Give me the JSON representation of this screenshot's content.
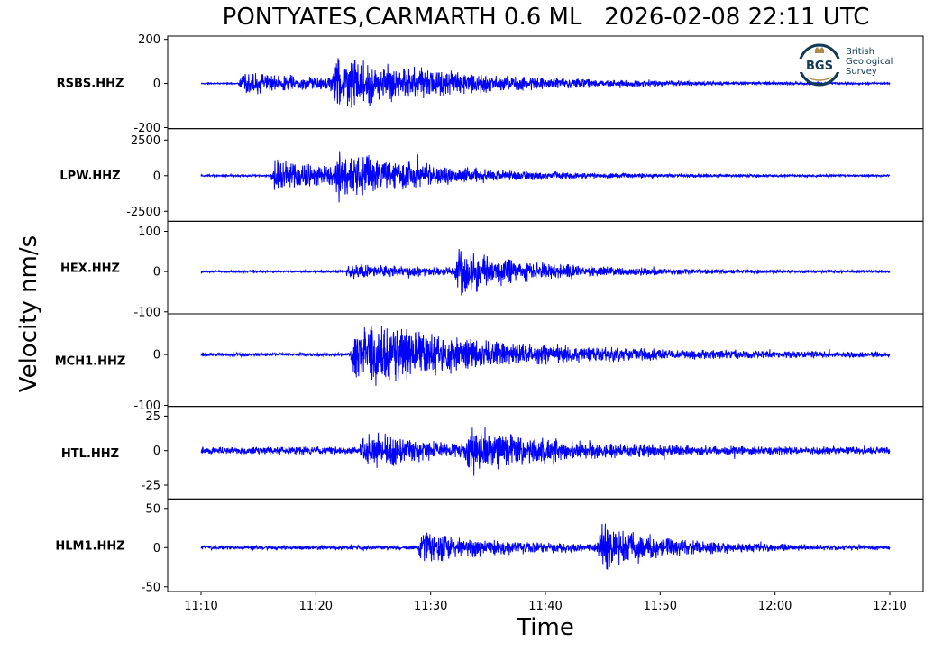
{
  "header": {
    "title": "PONTYATES,CARMARTH 0.6 ML   2026-02-08 22:11 UTC"
  },
  "logo": {
    "mark": "BGS",
    "lines": [
      "British",
      "Geological",
      "Survey"
    ],
    "color": "#113a57"
  },
  "chart_data": {
    "type": "line",
    "title": "PONTYATES,CARMARTH 0.6 ML   2026-02-08 22:11 UTC",
    "xlabel": "Time",
    "ylabel": "Velocity nm/s",
    "x_ticks": [
      "11:10",
      "11:20",
      "11:30",
      "11:40",
      "11:50",
      "12:00",
      "12:10"
    ],
    "x_range": [
      "11:10",
      "12:10"
    ],
    "trace_color": "#0000ff",
    "grid": false,
    "series": [
      {
        "name": "RSBS.HHZ",
        "yticks": [
          "200",
          "0",
          "-200"
        ],
        "ytick_values": [
          200,
          0,
          -200
        ],
        "ylim": [
          -205,
          215
        ],
        "noise": 3,
        "onsets": [
          {
            "t": 11.4,
            "amp": 120,
            "decay": 10
          },
          {
            "t": 3.2,
            "amp": 55,
            "decay": 14
          }
        ],
        "peak": 200
      },
      {
        "name": "LPW.HHZ",
        "yticks": [
          "2500",
          "0",
          "-2500"
        ],
        "ytick_values": [
          2500,
          0,
          -2500
        ],
        "ylim": [
          -3200,
          3300
        ],
        "noise": 80,
        "onsets": [
          {
            "t": 6.0,
            "amp": 1300,
            "decay": 8
          },
          {
            "t": 11.3,
            "amp": 1500,
            "decay": 9
          }
        ],
        "peak": 3000
      },
      {
        "name": "HEX.HHZ",
        "yticks": [
          "100",
          "0",
          "-100"
        ],
        "ytick_values": [
          100,
          0,
          -100
        ],
        "ylim": [
          -105,
          125
        ],
        "noise": 3,
        "onsets": [
          {
            "t": 12.5,
            "amp": 18,
            "decay": 12
          },
          {
            "t": 22.0,
            "amp": 55,
            "decay": 7
          }
        ],
        "peak": 115
      },
      {
        "name": "MCH1.HHZ",
        "yticks": [
          "0",
          "-100"
        ],
        "ytick_values": [
          0,
          -100
        ],
        "ylim": [
          -102,
          80
        ],
        "noise": 4,
        "onsets": [
          {
            "t": 13.0,
            "amp": 55,
            "decay": 9
          },
          {
            "t": 14.0,
            "amp": 25,
            "decay": 18
          }
        ],
        "peak": 75
      },
      {
        "name": "HTL.HHZ",
        "yticks": [
          "25",
          "0",
          "-25"
        ],
        "ytick_values": [
          25,
          0,
          -25
        ],
        "ylim": [
          -35,
          32
        ],
        "noise": 3,
        "onsets": [
          {
            "t": 13.8,
            "amp": 15,
            "decay": 6
          },
          {
            "t": 23.0,
            "amp": 16,
            "decay": 7
          }
        ],
        "peak": 32
      },
      {
        "name": "HLM1.HHZ",
        "yticks": [
          "50",
          "0",
          "-50"
        ],
        "ytick_values": [
          50,
          0,
          -50
        ],
        "ylim": [
          -56,
          62
        ],
        "noise": 3,
        "onsets": [
          {
            "t": 18.8,
            "amp": 22,
            "decay": 7
          },
          {
            "t": 34.5,
            "amp": 30,
            "decay": 6
          }
        ],
        "peak": 58
      }
    ]
  }
}
